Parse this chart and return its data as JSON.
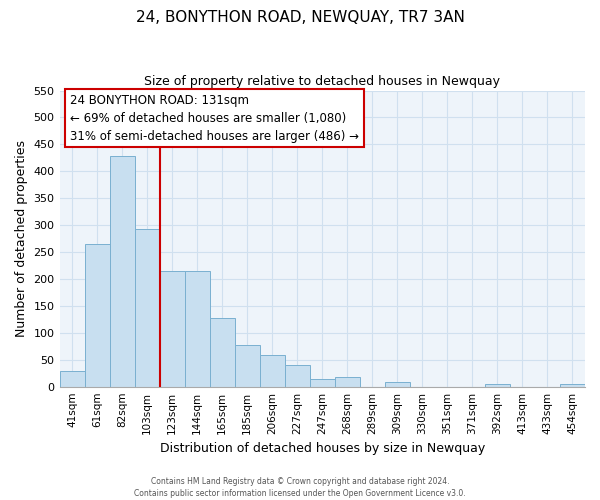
{
  "title": "24, BONYTHON ROAD, NEWQUAY, TR7 3AN",
  "subtitle": "Size of property relative to detached houses in Newquay",
  "xlabel": "Distribution of detached houses by size in Newquay",
  "ylabel": "Number of detached properties",
  "bar_color": "#c8dff0",
  "bar_edge_color": "#7ab0d0",
  "categories": [
    "41sqm",
    "61sqm",
    "82sqm",
    "103sqm",
    "123sqm",
    "144sqm",
    "165sqm",
    "185sqm",
    "206sqm",
    "227sqm",
    "247sqm",
    "268sqm",
    "289sqm",
    "309sqm",
    "330sqm",
    "351sqm",
    "371sqm",
    "392sqm",
    "413sqm",
    "433sqm",
    "454sqm"
  ],
  "values": [
    30,
    265,
    428,
    292,
    215,
    215,
    128,
    77,
    58,
    40,
    15,
    18,
    0,
    8,
    0,
    0,
    0,
    5,
    0,
    0,
    5
  ],
  "ylim": [
    0,
    550
  ],
  "yticks": [
    0,
    50,
    100,
    150,
    200,
    250,
    300,
    350,
    400,
    450,
    500,
    550
  ],
  "property_line_label": "24 BONYTHON ROAD: 131sqm",
  "annotation_line1": "← 69% of detached houses are smaller (1,080)",
  "annotation_line2": "31% of semi-detached houses are larger (486) →",
  "annotation_box_color": "#ffffff",
  "annotation_box_edge_color": "#cc0000",
  "property_line_color": "#cc0000",
  "property_line_x": 3.5,
  "footer1": "Contains HM Land Registry data © Crown copyright and database right 2024.",
  "footer2": "Contains public sector information licensed under the Open Government Licence v3.0.",
  "grid_color": "#d0e0ef",
  "bg_color": "#eef4fa"
}
